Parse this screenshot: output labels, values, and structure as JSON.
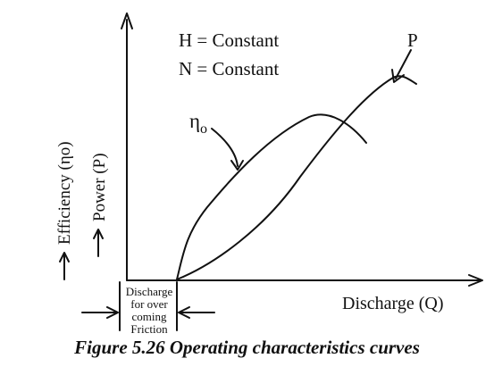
{
  "conditions": {
    "head": "H = Constant",
    "speed": "N = Constant"
  },
  "curves": {
    "efficiency_label": "η",
    "efficiency_subscript": "o",
    "power_label": "P"
  },
  "axes": {
    "y_label_efficiency": "Efficiency (ηo)",
    "y_label_power": "Power (P)",
    "x_label": "Discharge (Q)"
  },
  "annotation": {
    "line1": "Discharge",
    "line2": "for over",
    "line3": "coming",
    "line4": "Friction"
  },
  "caption": "Figure 5.26 Operating characteristics curves",
  "colors": {
    "ink": "#111111",
    "background": "#ffffff"
  }
}
